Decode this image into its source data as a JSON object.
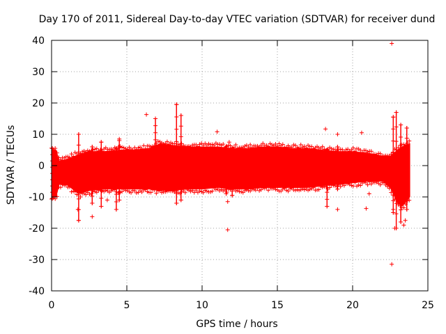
{
  "chart_data": {
    "type": "scatter",
    "title": "Day 170 of 2011, Sidereal Day-to-day VTEC variation (SDTVAR) for receiver dund",
    "xlabel": "GPS time / hours",
    "ylabel": "SDTVAR / TECUs",
    "xlim": [
      0,
      25
    ],
    "ylim": [
      -40,
      40
    ],
    "xticks": [
      0,
      5,
      10,
      15,
      20,
      25
    ],
    "yticks": [
      -40,
      -30,
      -20,
      -10,
      0,
      10,
      20,
      30,
      40
    ],
    "grid": true,
    "marker": "+",
    "color": "#ff0000",
    "band": {
      "x": [
        0.0,
        0.3,
        0.5,
        1.0,
        1.8,
        2.5,
        3.5,
        4.5,
        5.5,
        6.5,
        7.2,
        8.0,
        9.0,
        10.0,
        11.0,
        12.0,
        13.0,
        14.0,
        15.0,
        16.0,
        17.0,
        18.0,
        19.0,
        20.0,
        21.0,
        22.0,
        22.5,
        23.0,
        23.3,
        23.8
      ],
      "upper": [
        5.0,
        5.0,
        1.5,
        2.0,
        3.5,
        4.5,
        4.5,
        5.0,
        5.0,
        5.5,
        7.0,
        6.5,
        6.0,
        6.0,
        6.0,
        5.5,
        5.5,
        6.0,
        6.0,
        5.5,
        5.5,
        5.0,
        4.5,
        4.5,
        4.0,
        3.0,
        3.0,
        5.0,
        6.0,
        7.0
      ],
      "lower": [
        -10.0,
        -10.0,
        -6.0,
        -6.0,
        -9.0,
        -8.0,
        -7.5,
        -7.5,
        -7.5,
        -7.5,
        -8.0,
        -8.0,
        -7.5,
        -7.5,
        -7.0,
        -7.5,
        -7.5,
        -7.0,
        -7.0,
        -7.0,
        -7.0,
        -6.5,
        -6.0,
        -5.5,
        -5.0,
        -5.0,
        -7.0,
        -12.0,
        -13.0,
        -10.0
      ]
    },
    "spikes": [
      {
        "x": 0.05,
        "min": -10.5,
        "max": 5.5
      },
      {
        "x": 1.8,
        "min": -17.5,
        "max": 10.0
      },
      {
        "x": 2.7,
        "min": -12.0,
        "max": 6.0
      },
      {
        "x": 3.3,
        "min": -13.0,
        "max": 7.5
      },
      {
        "x": 4.3,
        "min": -14.0,
        "max": 5.5
      },
      {
        "x": 4.5,
        "min": -11.0,
        "max": 8.0
      },
      {
        "x": 6.9,
        "min": -3.0,
        "max": 15.0
      },
      {
        "x": 8.3,
        "min": -12.0,
        "max": 19.5
      },
      {
        "x": 8.6,
        "min": -11.0,
        "max": 16.0
      },
      {
        "x": 11.6,
        "min": -9.0,
        "max": 6.0
      },
      {
        "x": 12.0,
        "min": -9.5,
        "max": 5.5
      },
      {
        "x": 18.3,
        "min": -13.0,
        "max": 5.0
      },
      {
        "x": 19.0,
        "min": -7.5,
        "max": 6.0
      },
      {
        "x": 22.7,
        "min": -15.0,
        "max": 15.5
      },
      {
        "x": 22.9,
        "min": -20.0,
        "max": 17.0
      },
      {
        "x": 23.2,
        "min": -18.0,
        "max": 13.0
      },
      {
        "x": 23.6,
        "min": -14.0,
        "max": 12.0
      }
    ],
    "outliers": [
      {
        "x": 22.6,
        "y": 39.0
      },
      {
        "x": 22.6,
        "y": -31.5
      },
      {
        "x": 22.8,
        "y": -20.0
      },
      {
        "x": 23.4,
        "y": -19.0
      },
      {
        "x": 6.3,
        "y": 16.3
      },
      {
        "x": 11.0,
        "y": 10.8
      },
      {
        "x": 11.7,
        "y": -11.5
      },
      {
        "x": 11.7,
        "y": -20.5
      },
      {
        "x": 11.8,
        "y": 7.5
      },
      {
        "x": 18.2,
        "y": 11.7
      },
      {
        "x": 19.0,
        "y": 10.0
      },
      {
        "x": 19.0,
        "y": -14.0
      },
      {
        "x": 20.6,
        "y": 10.5
      },
      {
        "x": 20.9,
        "y": -13.7
      },
      {
        "x": 21.1,
        "y": -9.0
      },
      {
        "x": 22.7,
        "y": -14.0
      },
      {
        "x": 23.5,
        "y": -17.5
      },
      {
        "x": 2.7,
        "y": -16.3
      },
      {
        "x": 3.7,
        "y": -11.0
      },
      {
        "x": 4.5,
        "y": 8.5
      },
      {
        "x": 1.75,
        "y": -14.0
      }
    ]
  }
}
